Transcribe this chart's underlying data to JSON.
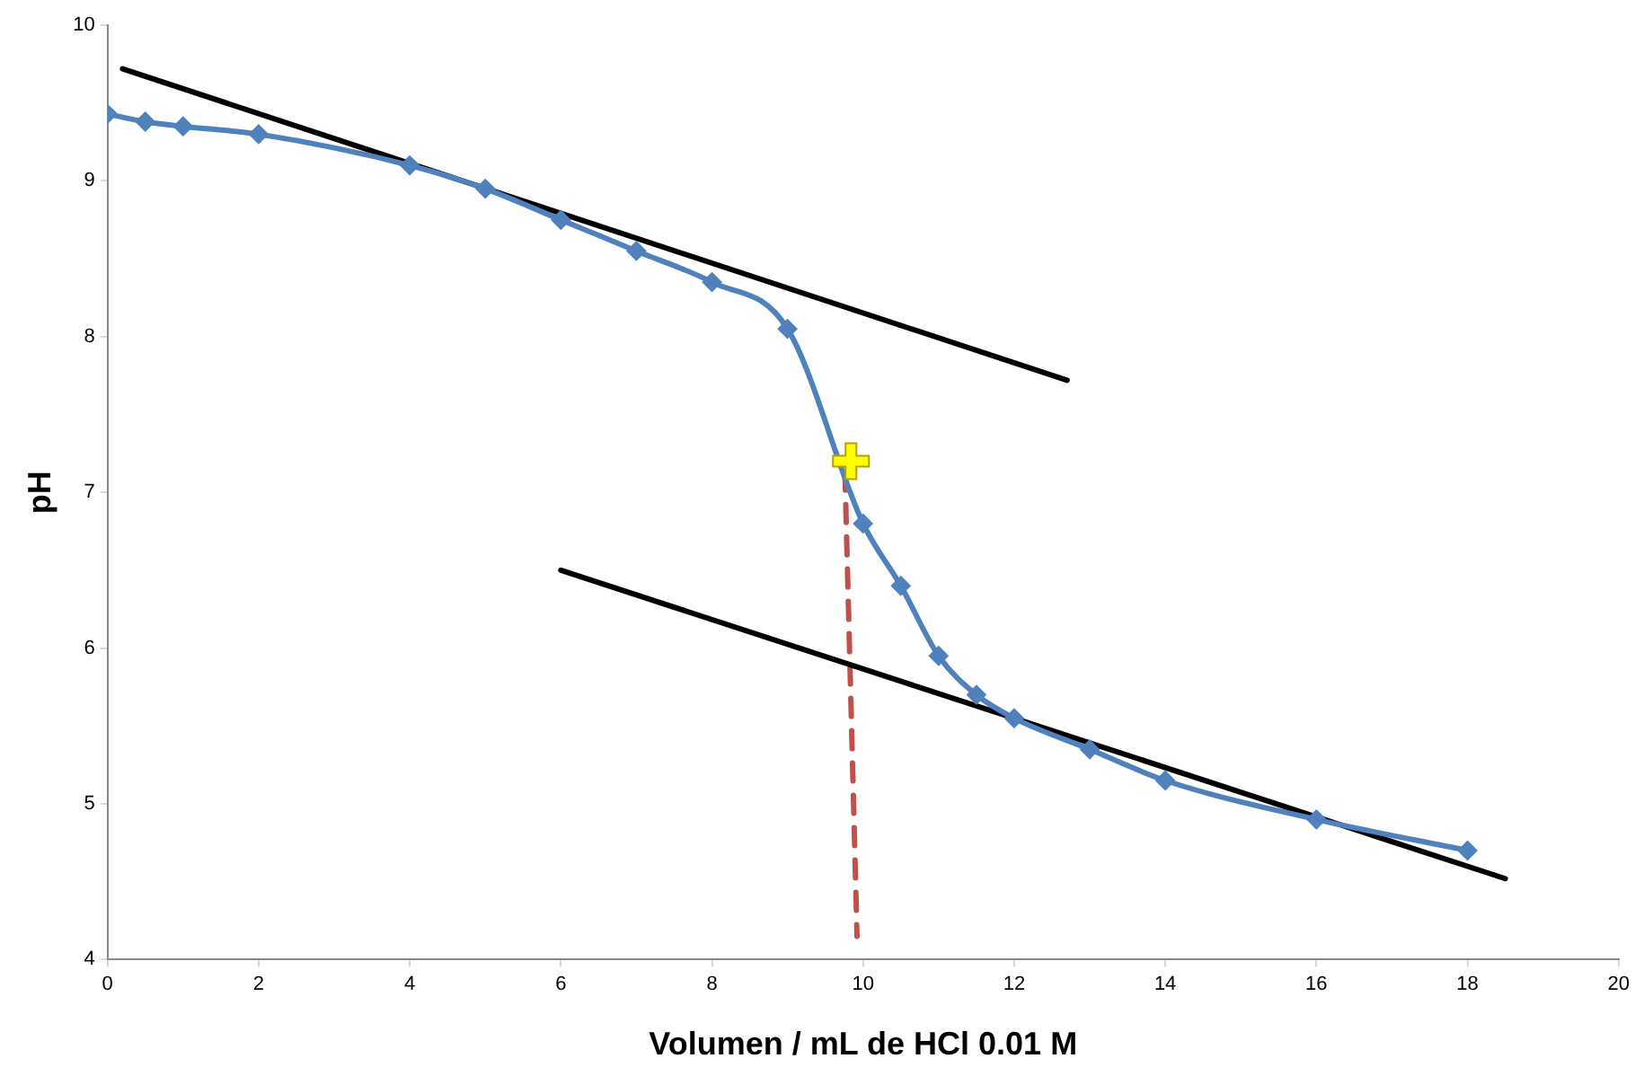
{
  "chart_data": {
    "type": "line",
    "xlabel": "Volumen / mL de HCl 0.01 M",
    "ylabel": "pH",
    "xlim": [
      0,
      20
    ],
    "xticks": [
      0,
      2,
      4,
      6,
      8,
      10,
      12,
      14,
      16,
      18,
      20
    ],
    "ylim": [
      4,
      10
    ],
    "yticks": [
      4,
      5,
      6,
      7,
      8,
      9,
      10
    ],
    "grid": false,
    "legend": false,
    "series": [
      {
        "color": "#4f81bd",
        "marker": "diamond",
        "line_style": "solid",
        "x": [
          0,
          0.5,
          1,
          2,
          4,
          5,
          6,
          7,
          8,
          9,
          10,
          10.5,
          11,
          11.5,
          12,
          13,
          14,
          16,
          18
        ],
        "values": [
          9.43,
          9.38,
          9.35,
          9.3,
          9.1,
          8.95,
          8.75,
          8.55,
          8.35,
          8.05,
          6.8,
          6.4,
          5.95,
          5.7,
          5.55,
          5.35,
          5.15,
          4.9,
          4.7
        ]
      },
      {
        "color": "#000000",
        "marker": "none",
        "line_style": "solid",
        "x": [
          0.2,
          12.7
        ],
        "values": [
          9.72,
          7.72
        ]
      },
      {
        "color": "#000000",
        "marker": "none",
        "line_style": "solid",
        "x": [
          6.0,
          18.5
        ],
        "values": [
          6.5,
          4.52
        ]
      },
      {
        "color": "#c0504d",
        "marker": "none",
        "line_style": "dashed",
        "x": [
          9.76,
          9.92
        ],
        "values": [
          7.13,
          4.15
        ]
      },
      {
        "color": "#ffff00",
        "marker": "cross",
        "x": [
          9.84
        ],
        "values": [
          7.2
        ]
      }
    ]
  }
}
